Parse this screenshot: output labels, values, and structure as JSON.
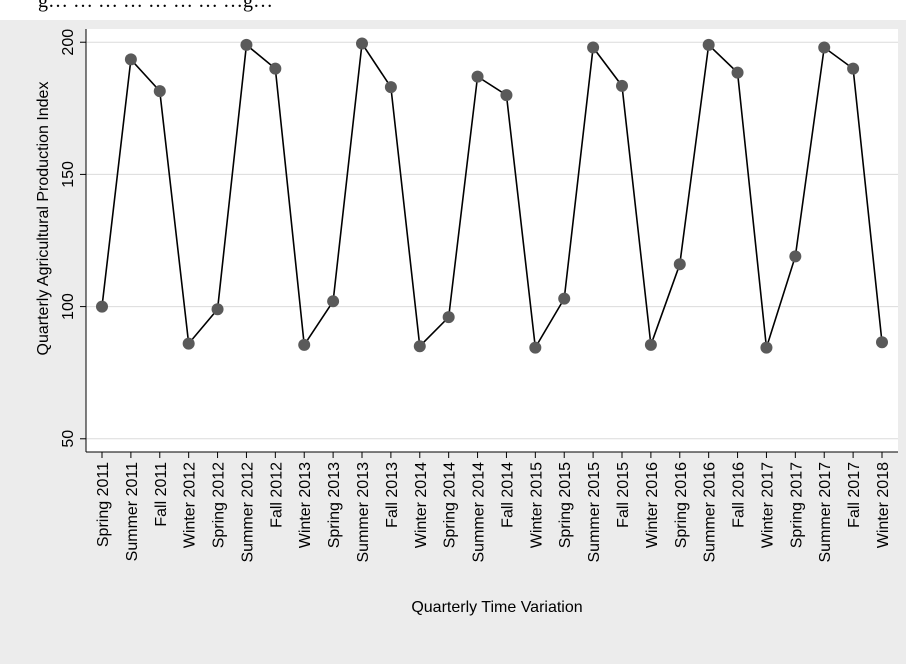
{
  "top_caption": "g…    …     …     …            …          …         …      …g…",
  "chart_data": {
    "type": "line",
    "title": "",
    "xlabel": "Quarterly Time Variation",
    "ylabel": "Quarterly Agricultural Production Index",
    "ylim": [
      45,
      205
    ],
    "yticks": [
      50,
      100,
      150,
      200
    ],
    "grid": true,
    "legend": "none",
    "categories": [
      "Spring 2011",
      "Summer 2011",
      "Fall 2011",
      "Winter 2012",
      "Spring 2012",
      "Summer 2012",
      "Fall 2012",
      "Winter 2013",
      "Spring 2013",
      "Summer 2013",
      "Fall 2013",
      "Winter 2014",
      "Spring 2014",
      "Summer 2014",
      "Fall 2014",
      "Winter 2015",
      "Spring 2015",
      "Summer 2015",
      "Fall 2015",
      "Winter 2016",
      "Spring 2016",
      "Summer 2016",
      "Fall 2016",
      "Winter 2017",
      "Spring 2017",
      "Summer 2017",
      "Fall 2017",
      "Winter 2018"
    ],
    "values": [
      100,
      193.5,
      181.5,
      86,
      99,
      199,
      190,
      85.5,
      102,
      199.5,
      183,
      85,
      96,
      187,
      180,
      84.5,
      103,
      198,
      183.5,
      85.5,
      116,
      199,
      188.5,
      84.5,
      119,
      198,
      190,
      86.5
    ],
    "colors": {
      "line": "#000000",
      "marker": "#5a5a5a",
      "grid": "#dcdcdc",
      "plot_bg": "#ffffff",
      "outer_bg": "#ececec"
    }
  }
}
